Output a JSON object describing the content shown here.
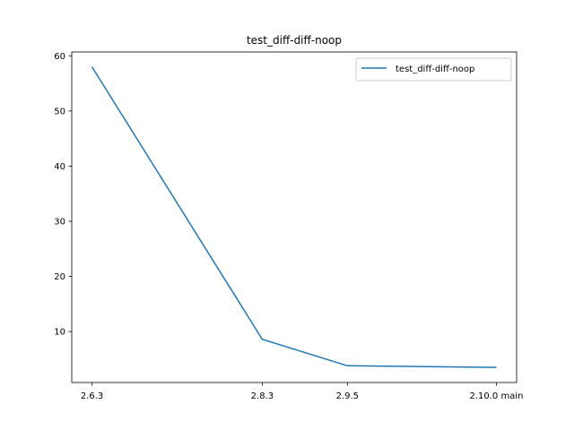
{
  "chart_data": {
    "type": "line",
    "title": "test_diff-diff-noop",
    "xlabel": "",
    "ylabel": "",
    "categories": [
      "2.6.3",
      "2.8.3",
      "2.9.5",
      "2.10.0 main"
    ],
    "x": [
      0,
      2,
      3,
      4.75
    ],
    "xlim": [
      -0.2375,
      4.9875
    ],
    "ylim": [
      0.76,
      60.7
    ],
    "yticks": [
      10,
      20,
      30,
      40,
      50,
      60
    ],
    "series": [
      {
        "name": "test_diff-diff-noop",
        "values": [
          58.0,
          8.6,
          3.8,
          3.5
        ]
      }
    ],
    "legend_position": "upper right",
    "grid": false,
    "colors": {
      "series": "#1f77b4"
    }
  }
}
